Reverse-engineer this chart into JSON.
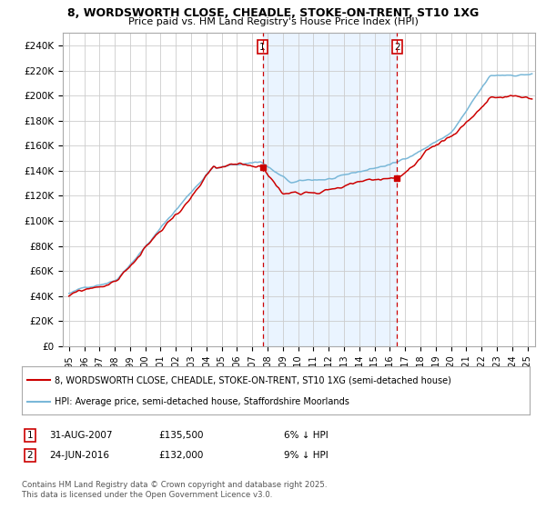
{
  "title": "8, WORDSWORTH CLOSE, CHEADLE, STOKE-ON-TRENT, ST10 1XG",
  "subtitle": "Price paid vs. HM Land Registry's House Price Index (HPI)",
  "legend_line1": "8, WORDSWORTH CLOSE, CHEADLE, STOKE-ON-TRENT, ST10 1XG (semi-detached house)",
  "legend_line2": "HPI: Average price, semi-detached house, Staffordshire Moorlands",
  "footnote": "Contains HM Land Registry data © Crown copyright and database right 2025.\nThis data is licensed under the Open Government Licence v3.0.",
  "marker1_label": "1",
  "marker1_date": "31-AUG-2007",
  "marker1_price": "£135,500",
  "marker1_hpi": "6% ↓ HPI",
  "marker2_label": "2",
  "marker2_date": "24-JUN-2016",
  "marker2_price": "£132,000",
  "marker2_hpi": "9% ↓ HPI",
  "hpi_color": "#7ab8d8",
  "price_color": "#cc0000",
  "marker_color": "#cc0000",
  "vline_color": "#cc0000",
  "shade_color": "#ddeeff",
  "ylim": [
    0,
    250000
  ],
  "ytick_step": 20000,
  "start_year": 1995,
  "end_year": 2025,
  "marker1_x": 2007.67,
  "marker2_x": 2016.48,
  "background_color": "#ffffff",
  "grid_color": "#cccccc"
}
